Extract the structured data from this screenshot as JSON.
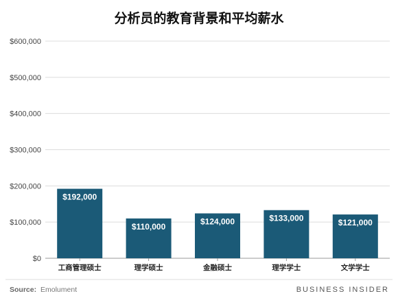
{
  "chart_data": {
    "type": "bar",
    "title": "分析员的教育背景和平均薪水",
    "categories": [
      "工商管理硕士",
      "理学硕士",
      "金融硕士",
      "理学学士",
      "文学学士"
    ],
    "values": [
      192000,
      110000,
      124000,
      133000,
      121000
    ],
    "value_labels": [
      "$192,000",
      "$110,000",
      "$124,000",
      "$133,000",
      "$121,000"
    ],
    "ylim": [
      0,
      600000
    ],
    "yticks": [
      0,
      100000,
      200000,
      300000,
      400000,
      500000,
      600000
    ],
    "ytick_labels": [
      "$0",
      "$100,000",
      "$200,000",
      "$300,000",
      "$400,000",
      "$500,000",
      "$600,000"
    ],
    "grid": true,
    "colors": {
      "bar": "#1b5a77",
      "grid": "#dcdcdc",
      "axis": "#999999"
    }
  },
  "footer": {
    "source_label": "Source:",
    "source_value": "Emolument",
    "brand": "BUSINESS INSIDER"
  }
}
